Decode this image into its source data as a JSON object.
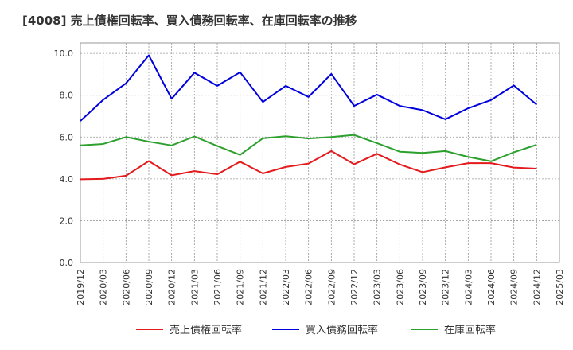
{
  "chart_data": {
    "type": "line",
    "title": "[4008]  売上債権回転率、買入債務回転率、在庫回転率の推移",
    "xlabel": "",
    "ylabel": "",
    "ylim": [
      0,
      10.5
    ],
    "yticks": [
      0.0,
      2.0,
      4.0,
      6.0,
      8.0,
      10.0
    ],
    "ytick_labels": [
      "0.0",
      "2.0",
      "4.0",
      "6.0",
      "8.0",
      "10.0"
    ],
    "grid": true,
    "legend_position": "bottom",
    "categories": [
      "2019/12",
      "2020/03",
      "2020/06",
      "2020/09",
      "2020/12",
      "2021/03",
      "2021/06",
      "2021/09",
      "2021/12",
      "2022/03",
      "2022/06",
      "2022/09",
      "2022/12",
      "2023/03",
      "2023/06",
      "2023/09",
      "2023/12",
      "2024/03",
      "2024/06",
      "2024/09",
      "2024/12",
      "2025/03"
    ],
    "series": [
      {
        "name": "売上債権回転率",
        "color": "#e41a1c",
        "values": [
          3.98,
          4.0,
          4.15,
          4.85,
          4.17,
          4.37,
          4.22,
          4.82,
          4.26,
          4.57,
          4.73,
          5.33,
          4.7,
          5.2,
          4.69,
          4.32,
          4.55,
          4.75,
          4.75,
          4.54,
          4.49,
          null
        ]
      },
      {
        "name": "買入債務回転率",
        "color": "#0000dd",
        "values": [
          6.77,
          7.78,
          8.57,
          9.91,
          7.83,
          9.08,
          8.45,
          9.1,
          7.68,
          8.45,
          7.92,
          9.02,
          7.49,
          8.03,
          7.49,
          7.29,
          6.85,
          7.38,
          7.77,
          8.47,
          7.55,
          null
        ]
      },
      {
        "name": "在庫回転率",
        "color": "#2ca02c",
        "values": [
          5.6,
          5.67,
          6.0,
          5.78,
          5.6,
          6.03,
          5.57,
          5.15,
          5.94,
          6.04,
          5.93,
          6.0,
          6.1,
          5.71,
          5.3,
          5.24,
          5.33,
          5.05,
          4.84,
          5.27,
          5.63,
          null
        ]
      }
    ]
  }
}
